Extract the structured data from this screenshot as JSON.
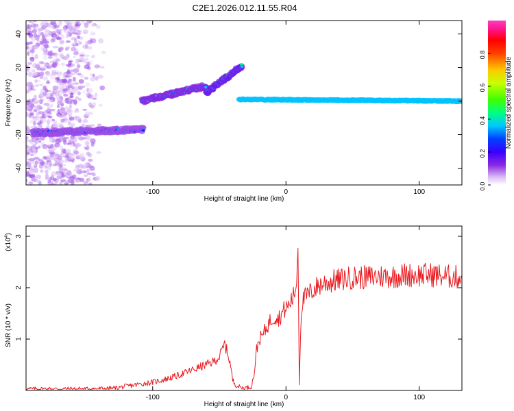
{
  "figure_title": "C2E1.2026.012.11.55.R04",
  "chart_data": [
    {
      "type": "heatmap",
      "title": "C2E1.2026.012.11.55.R04",
      "xlabel": "Height of straight line (km)",
      "ylabel": "Frequency (Hz)",
      "xlim": [
        -195,
        132
      ],
      "ylim": [
        -50,
        48
      ],
      "xticks": [
        -100,
        0,
        100
      ],
      "xtick_labels": [
        "-100",
        "0",
        "100"
      ],
      "yticks": [
        -40,
        -20,
        0,
        20,
        40
      ],
      "ytick_labels": [
        "-40",
        "-20",
        "0",
        "20",
        "40"
      ],
      "colorbar": {
        "label": "Normalized spectral amplitude",
        "range": [
          0,
          1
        ],
        "ticks": [
          0,
          0.2,
          0.4,
          0.6,
          0.8
        ],
        "tick_labels": [
          "0.0",
          "0.2",
          "0.4",
          "0.6",
          "0.8"
        ],
        "colormap": [
          "#ffffff",
          "#d8b8f5",
          "#8a2be2",
          "#3a00ff",
          "#0040ff",
          "#00c8ff",
          "#00ff80",
          "#40ff00",
          "#c8ff00",
          "#ffc800",
          "#ff4000",
          "#ff0000",
          "#ff1080",
          "#ff3cc0"
        ]
      },
      "features": [
        {
          "name": "noise-scatter",
          "x_range": [
            -195,
            -135
          ],
          "freq_range": [
            -50,
            48
          ],
          "amplitude": 0.12
        },
        {
          "name": "branch-lower",
          "x_range": [
            -190,
            -107
          ],
          "freq_start": -19,
          "freq_end": -17,
          "amplitude": 0.3
        },
        {
          "name": "branch-middle",
          "x_range": [
            -108,
            -60
          ],
          "freq_start": 0,
          "freq_end": 9,
          "amplitude": 0.35
        },
        {
          "name": "branch-rising",
          "x_range": [
            -60,
            -33
          ],
          "freq_start": 5,
          "freq_end": 21,
          "amplitude": 0.4
        },
        {
          "name": "branch-steady",
          "x_range": [
            -35,
            132
          ],
          "freq_start": 1,
          "freq_end": 0,
          "amplitude": 0.85
        }
      ]
    },
    {
      "type": "line",
      "xlabel": "Height of straight line (km)",
      "ylabel": "SNR (10 * v/v)",
      "y_scale_label": "(x10",
      "y_scale_exponent": "4",
      "xlim": [
        -195,
        132
      ],
      "ylim": [
        0,
        3.2
      ],
      "xticks": [
        -100,
        0,
        100
      ],
      "xtick_labels": [
        "-100",
        "0",
        "100"
      ],
      "yticks": [
        1,
        2,
        3
      ],
      "ytick_labels": [
        "1",
        "2",
        "3"
      ],
      "series": [
        {
          "name": "SNR",
          "color": "#e8191e",
          "x": [
            -195,
            -150,
            -130,
            -120,
            -110,
            -100,
            -90,
            -80,
            -70,
            -60,
            -55,
            -50,
            -46,
            -44,
            -42,
            -40,
            -38,
            -36,
            -34,
            -32,
            -30,
            -28,
            -26,
            -24,
            -22,
            -20,
            -18,
            -16,
            -14,
            -12,
            -10,
            -8,
            -6,
            -4,
            -2,
            0,
            2,
            4,
            6,
            8,
            9,
            10,
            11,
            12,
            14,
            16,
            18,
            20,
            25,
            30,
            40,
            50,
            60,
            70,
            80,
            90,
            100,
            110,
            120,
            132
          ],
          "y": [
            0.03,
            0.03,
            0.04,
            0.08,
            0.12,
            0.16,
            0.22,
            0.3,
            0.4,
            0.5,
            0.55,
            0.65,
            0.9,
            0.75,
            0.55,
            0.2,
            0.12,
            0.08,
            0.06,
            0.05,
            0.05,
            0.06,
            0.08,
            0.3,
            0.8,
            1.0,
            1.05,
            1.15,
            1.25,
            1.35,
            1.4,
            1.45,
            1.4,
            1.45,
            1.55,
            1.6,
            1.65,
            1.75,
            1.85,
            2.1,
            3.0,
            0.15,
            1.2,
            1.7,
            1.8,
            1.85,
            1.9,
            1.95,
            2.05,
            2.1,
            2.15,
            2.2,
            2.2,
            2.22,
            2.22,
            2.25,
            2.25,
            2.25,
            2.22,
            2.2
          ]
        }
      ]
    }
  ]
}
